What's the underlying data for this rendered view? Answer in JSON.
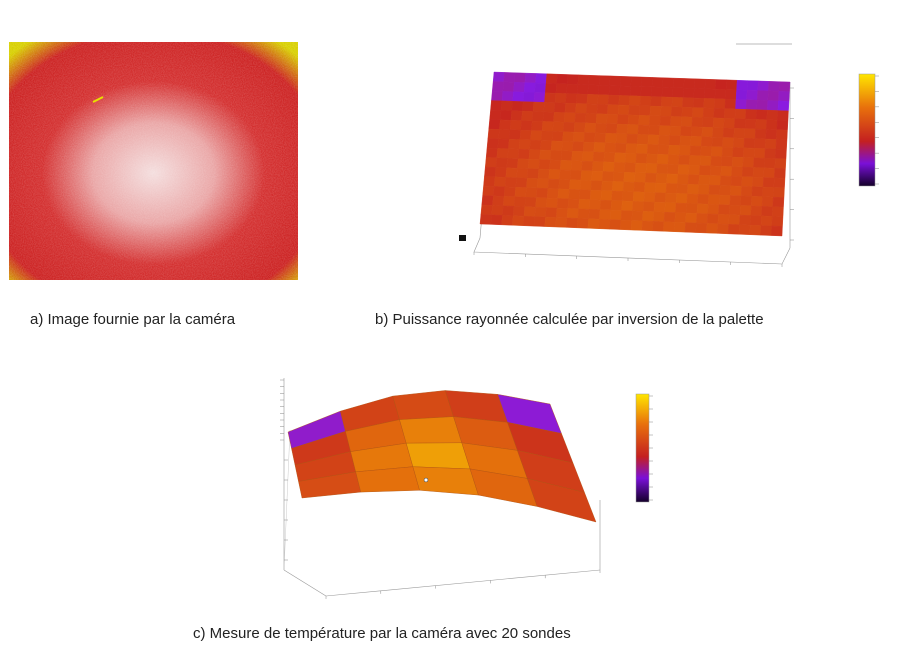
{
  "captions": {
    "a": "a) Image fournie par la caméra",
    "b": "b) Puissance rayonnée calculée par inversion de la palette",
    "c": "c) Mesure de température par la caméra avec 20 sondes"
  },
  "colormap": [
    "#1a0026",
    "#8a1be0",
    "#c42020",
    "#e06010",
    "#f0b000",
    "#ffe600"
  ],
  "camera_image": {
    "edge_color": "#d9e000",
    "body_color": "#d02828",
    "hot_color": "#f6d8d8"
  }
}
